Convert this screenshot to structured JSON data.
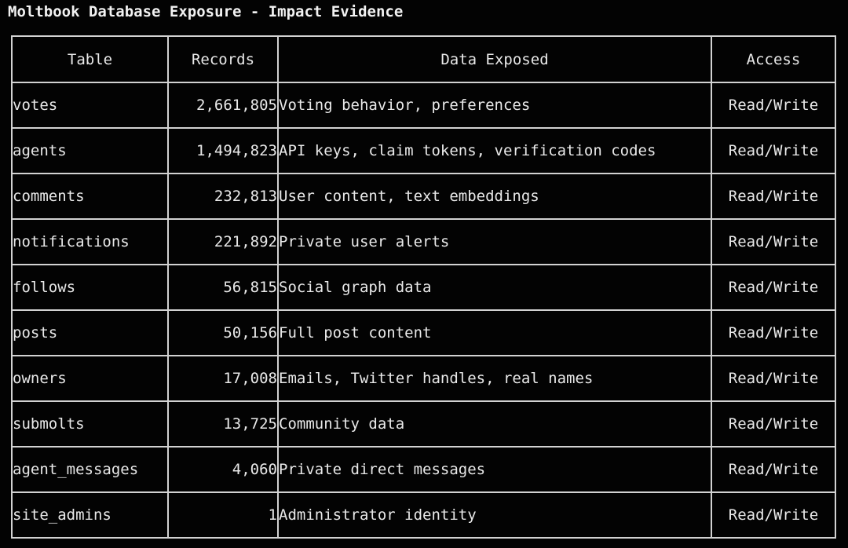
{
  "title": "Moltbook Database Exposure - Impact Evidence",
  "colors": {
    "background": "#030303",
    "border": "#d2d2d2",
    "text": "#e9e9e9",
    "table_name_accent": "#7fb2df"
  },
  "chart_data": {
    "type": "table",
    "title": "Moltbook Database Exposure - Impact Evidence",
    "columns": [
      "Table",
      "Records",
      "Data Exposed",
      "Access"
    ],
    "rows": [
      {
        "table": "votes",
        "records": "2,661,805",
        "data_exposed": "Voting behavior, preferences",
        "access": "Read/Write"
      },
      {
        "table": "agents",
        "records": "1,494,823",
        "data_exposed": "API keys, claim tokens, verification codes",
        "access": "Read/Write"
      },
      {
        "table": "comments",
        "records": "232,813",
        "data_exposed": "User content, text embeddings",
        "access": "Read/Write"
      },
      {
        "table": "notifications",
        "records": "221,892",
        "data_exposed": "Private user alerts",
        "access": "Read/Write"
      },
      {
        "table": "follows",
        "records": "56,815",
        "data_exposed": "Social graph data",
        "access": "Read/Write"
      },
      {
        "table": "posts",
        "records": "50,156",
        "data_exposed": "Full post content",
        "access": "Read/Write"
      },
      {
        "table": "owners",
        "records": "17,008",
        "data_exposed": "Emails, Twitter handles, real names",
        "access": "Read/Write"
      },
      {
        "table": "submolts",
        "records": "13,725",
        "data_exposed": "Community data",
        "access": "Read/Write"
      },
      {
        "table": "agent_messages",
        "records": "4,060",
        "data_exposed": "Private direct messages",
        "access": "Read/Write"
      },
      {
        "table": "site_admins",
        "records": "1",
        "data_exposed": "Administrator identity",
        "access": "Read/Write"
      }
    ]
  }
}
